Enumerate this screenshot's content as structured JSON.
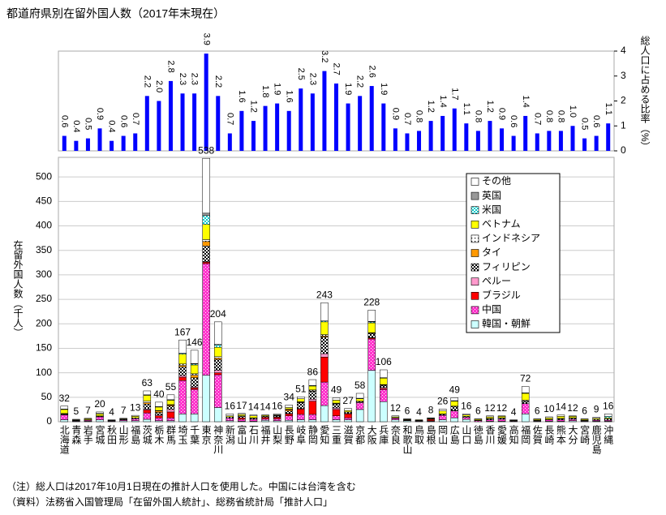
{
  "title": "都道府県別在留外国人数（2017年末現在）",
  "notes": [
    "（注）総人口は2017年10月1日現在の推計人口を使用した。中国には台湾を含む",
    "（資料）法務省入国管理局「在留外国人統計」、総務省統計局「推計人口」"
  ],
  "chart_data": [
    {
      "type": "bar",
      "y_label": "総人口に占める比率（%）",
      "yaxis_side": "right",
      "color": "#0000ff",
      "grid": false,
      "ylim": [
        0,
        4
      ],
      "yticks": [
        0,
        1,
        2,
        3,
        4
      ],
      "values": [
        0.6,
        0.4,
        0.5,
        0.9,
        0.4,
        0.6,
        0.7,
        2.2,
        2.0,
        2.8,
        2.3,
        2.3,
        3.9,
        2.2,
        0.7,
        1.6,
        1.2,
        1.8,
        1.9,
        1.6,
        2.5,
        2.3,
        3.2,
        2.7,
        1.9,
        2.2,
        2.6,
        1.9,
        0.9,
        0.7,
        0.8,
        1.2,
        1.4,
        1.7,
        1.1,
        0.8,
        1.2,
        0.9,
        0.6,
        1.4,
        0.7,
        0.8,
        0.8,
        1.0,
        0.5,
        0.6,
        1.1
      ],
      "value_labels": [
        "0.6",
        "0.4",
        "0.5",
        "0.9",
        "0.4",
        "0.6",
        "0.7",
        "2.2",
        "2.0",
        "2.8",
        "2.3",
        "2.3",
        "3.9",
        "2.2",
        "0.7",
        "1.6",
        "1.2",
        "1.8",
        "1.9",
        "1.6",
        "2.5",
        "2.3",
        "3.2",
        "2.7",
        "1.9",
        "2.2",
        "2.6",
        "1.9",
        "0.9",
        "0.7",
        "0.8",
        "1.2",
        "1.4",
        "1.7",
        "1.1",
        "0.8",
        "1.2",
        "0.9",
        "0.6",
        "1.4",
        "0.7",
        "0.8",
        "0.8",
        "1.0",
        "0.5",
        "0.6",
        "1.1"
      ]
    },
    {
      "type": "stacked_bar",
      "y_label": "在留外国人数（千人）",
      "grid": true,
      "legend": "upper right",
      "ylim": [
        0,
        540
      ],
      "yticks": [
        0,
        50,
        100,
        150,
        200,
        250,
        300,
        350,
        400,
        450,
        500
      ],
      "categories": [
        "北海道",
        "青森",
        "岩手",
        "宮城",
        "秋田",
        "山形",
        "福島",
        "茨城",
        "栃木",
        "群馬",
        "埼玉",
        "千葉",
        "東京",
        "神奈川",
        "新潟",
        "富山",
        "石川",
        "福井",
        "山梨",
        "長野",
        "岐阜",
        "静岡",
        "愛知",
        "三重",
        "滋賀",
        "京都",
        "大阪",
        "兵庫",
        "奈良",
        "和歌山",
        "鳥取",
        "島根",
        "岡山",
        "広島",
        "山口",
        "徳島",
        "香川",
        "愛媛",
        "高知",
        "福岡",
        "佐賀",
        "長崎",
        "熊本",
        "大分",
        "宮崎",
        "鹿児島",
        "沖縄"
      ],
      "totals": [
        32,
        5,
        7,
        20,
        4,
        7,
        13,
        63,
        40,
        55,
        167,
        146,
        538,
        204,
        16,
        17,
        14,
        14,
        16,
        34,
        51,
        86,
        243,
        49,
        27,
        58,
        228,
        106,
        12,
        6,
        4,
        8,
        26,
        49,
        16,
        6,
        12,
        12,
        4,
        72,
        6,
        10,
        14,
        12,
        6,
        9,
        16
      ],
      "series": [
        {
          "name": "韓国・朝鮮",
          "color": "#ccffff",
          "values": [
            4,
            1,
            1,
            4,
            1,
            2,
            2,
            5,
            2,
            2,
            16,
            16,
            95,
            29,
            2,
            1,
            1,
            3,
            2,
            3,
            4,
            4,
            33,
            4,
            4,
            25,
            105,
            41,
            4,
            2,
            1,
            1,
            4,
            8,
            5,
            0,
            1,
            1,
            0,
            16,
            1,
            1,
            1,
            2,
            1,
            1,
            1
          ]
        },
        {
          "name": "中国",
          "color": "#ff33cc",
          "pattern": "dots",
          "values": [
            10,
            1,
            2,
            6,
            1,
            2,
            4,
            13,
            6,
            6,
            68,
            50,
            228,
            67,
            5,
            4,
            4,
            3,
            4,
            9,
            11,
            11,
            48,
            8,
            4,
            14,
            64,
            25,
            3,
            1,
            1,
            1,
            9,
            14,
            4,
            2,
            3,
            4,
            1,
            21,
            1,
            3,
            3,
            3,
            1,
            2,
            2
          ]
        },
        {
          "name": "ブラジル",
          "color": "#ff0000",
          "values": [
            0,
            0,
            0,
            0,
            0,
            0,
            0,
            6,
            4,
            12,
            7,
            3,
            3,
            4,
            0,
            3,
            0,
            3,
            3,
            4,
            11,
            27,
            51,
            13,
            8,
            0,
            2,
            2,
            0,
            0,
            0,
            3,
            0,
            1,
            0,
            0,
            0,
            0,
            0,
            0,
            0,
            0,
            0,
            0,
            0,
            0,
            0
          ]
        },
        {
          "name": "ペルー",
          "color": "#ff99cc",
          "values": [
            0,
            0,
            0,
            0,
            0,
            0,
            0,
            2,
            2,
            5,
            3,
            2,
            1,
            5,
            0,
            0,
            0,
            0,
            1,
            1,
            1,
            4,
            7,
            3,
            1,
            0,
            1,
            2,
            0,
            0,
            0,
            0,
            0,
            0,
            0,
            0,
            0,
            0,
            0,
            0,
            0,
            0,
            0,
            0,
            0,
            0,
            0
          ]
        },
        {
          "name": "フィリピン",
          "color": "#000000",
          "pattern": "checker",
          "values": [
            1,
            1,
            1,
            1,
            1,
            1,
            2,
            10,
            5,
            7,
            18,
            19,
            32,
            22,
            3,
            3,
            2,
            2,
            2,
            5,
            12,
            16,
            34,
            8,
            3,
            2,
            8,
            4,
            1,
            1,
            1,
            1,
            2,
            8,
            2,
            1,
            2,
            2,
            1,
            4,
            1,
            1,
            2,
            2,
            1,
            2,
            3
          ]
        },
        {
          "name": "タイ",
          "color": "#ff9900",
          "values": [
            1,
            0,
            0,
            0,
            0,
            0,
            0,
            3,
            3,
            2,
            3,
            5,
            9,
            3,
            0,
            0,
            0,
            0,
            1,
            3,
            1,
            1,
            2,
            1,
            0,
            0,
            1,
            1,
            0,
            0,
            0,
            0,
            0,
            0,
            0,
            0,
            0,
            0,
            0,
            1,
            0,
            0,
            0,
            0,
            0,
            0,
            0
          ]
        },
        {
          "name": "インドネシア",
          "color": "#000000",
          "pattern": "sparse-dots",
          "values": [
            1,
            0,
            0,
            1,
            0,
            0,
            0,
            3,
            1,
            1,
            3,
            3,
            4,
            3,
            0,
            1,
            1,
            0,
            0,
            1,
            1,
            2,
            3,
            1,
            0,
            1,
            1,
            1,
            0,
            0,
            0,
            0,
            1,
            1,
            0,
            0,
            1,
            1,
            0,
            2,
            0,
            0,
            1,
            1,
            0,
            0,
            0
          ]
        },
        {
          "name": "ベトナム",
          "color": "#ffff00",
          "values": [
            8,
            1,
            2,
            4,
            0,
            1,
            3,
            12,
            7,
            9,
            20,
            18,
            31,
            19,
            2,
            3,
            4,
            2,
            1,
            3,
            6,
            8,
            26,
            6,
            3,
            5,
            20,
            13,
            2,
            1,
            1,
            1,
            6,
            10,
            3,
            2,
            3,
            3,
            1,
            14,
            2,
            3,
            4,
            3,
            2,
            2,
            2
          ]
        },
        {
          "name": "米国",
          "color": "#00cccc",
          "pattern": "checker",
          "values": [
            1,
            0,
            0,
            1,
            0,
            0,
            0,
            1,
            1,
            1,
            2,
            2,
            18,
            5,
            0,
            0,
            0,
            0,
            0,
            0,
            0,
            1,
            2,
            0,
            0,
            1,
            2,
            1,
            0,
            0,
            0,
            0,
            0,
            1,
            0,
            0,
            0,
            0,
            0,
            1,
            0,
            0,
            0,
            0,
            0,
            0,
            3
          ]
        },
        {
          "name": "英国",
          "color": "#999999",
          "values": [
            0,
            0,
            0,
            0,
            0,
            0,
            0,
            0,
            0,
            0,
            0,
            1,
            5,
            1,
            0,
            0,
            0,
            0,
            0,
            0,
            0,
            0,
            0,
            0,
            0,
            0,
            1,
            0,
            0,
            0,
            0,
            0,
            0,
            0,
            0,
            0,
            0,
            0,
            0,
            0,
            0,
            0,
            0,
            0,
            0,
            0,
            0
          ]
        },
        {
          "name": "その他",
          "color": "#ffffff",
          "values": [
            6,
            1,
            1,
            3,
            1,
            1,
            2,
            8,
            9,
            10,
            27,
            27,
            112,
            46,
            4,
            2,
            2,
            1,
            2,
            5,
            4,
            12,
            37,
            5,
            4,
            10,
            23,
            16,
            2,
            1,
            0,
            1,
            4,
            6,
            2,
            1,
            2,
            1,
            1,
            13,
            1,
            2,
            3,
            1,
            1,
            2,
            5
          ]
        }
      ]
    }
  ]
}
